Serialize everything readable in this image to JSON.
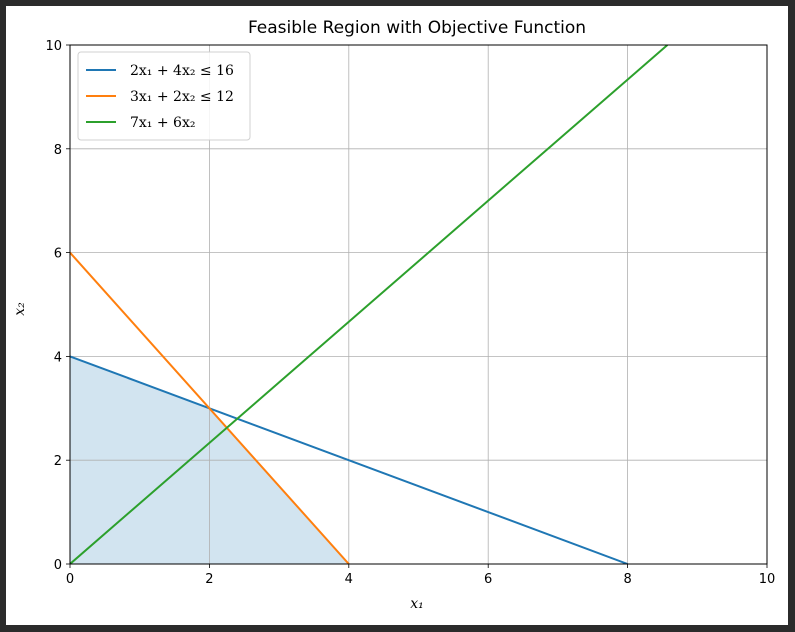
{
  "chart_data": {
    "type": "line",
    "title": "Feasible Region with Objective Function",
    "xlabel": "x₁",
    "ylabel": "x₂",
    "xlim": [
      0,
      10
    ],
    "ylim": [
      0,
      10
    ],
    "xticks": [
      "0",
      "2",
      "4",
      "6",
      "8",
      "10"
    ],
    "yticks": [
      "0",
      "2",
      "4",
      "6",
      "8",
      "10"
    ],
    "grid": true,
    "legend_position": "top-left",
    "series": [
      {
        "name": "2x₁ + 4x₂ ≤ 16",
        "color": "#1f77b4",
        "x": [
          0,
          8
        ],
        "y": [
          4,
          0
        ]
      },
      {
        "name": "3x₁ + 2x₂ ≤ 12",
        "color": "#ff7f0e",
        "x": [
          0,
          4
        ],
        "y": [
          6,
          0
        ]
      },
      {
        "name": "7x₁ + 6x₂",
        "color": "#2ca02c",
        "x": [
          0,
          8.571
        ],
        "y": [
          0,
          10
        ]
      }
    ],
    "feasible_region": {
      "color": "#1f77b4",
      "opacity": 0.2,
      "x": [
        0,
        0,
        2,
        4
      ],
      "y": [
        0,
        4,
        3,
        0
      ]
    }
  }
}
